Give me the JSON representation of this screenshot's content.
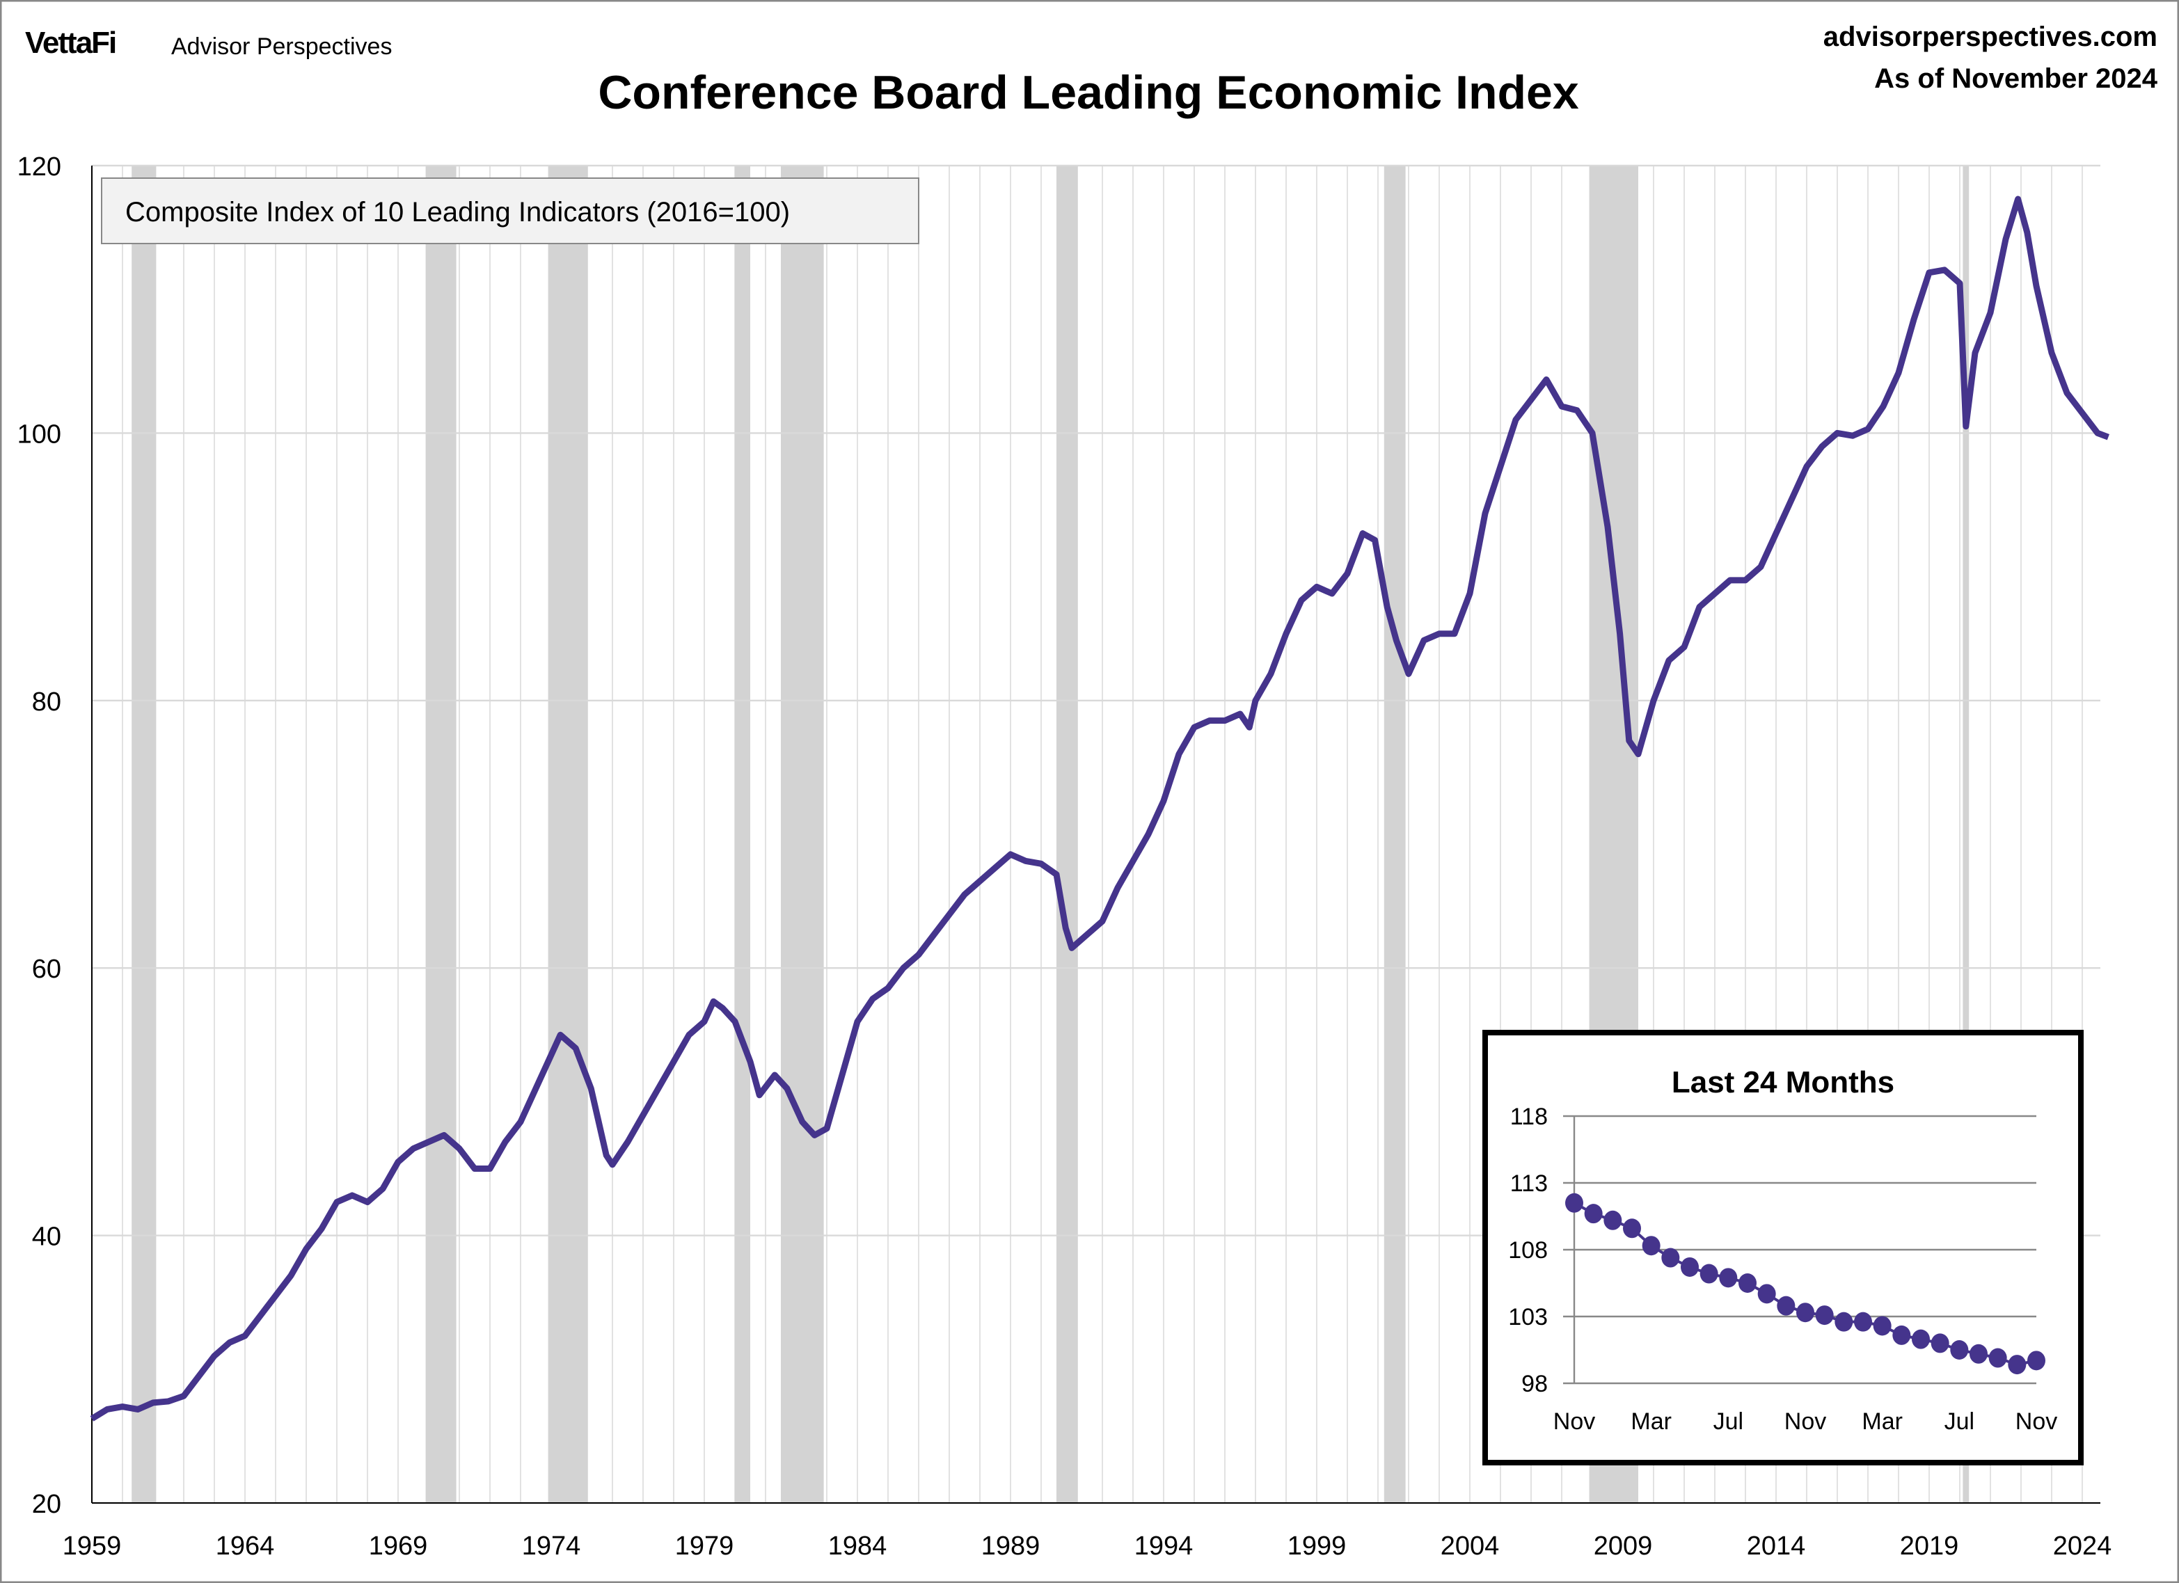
{
  "header": {
    "logo": "VettaFi",
    "brand": "Advisor Perspectives",
    "site": "advisorperspectives.com",
    "as_of": "As of November 2024"
  },
  "colors": {
    "line": "#45348c",
    "recession": "#d3d3d3",
    "grid": "#e2e2e2"
  },
  "chart_data": [
    {
      "type": "line",
      "title": "Conference Board Leading Economic Index",
      "legend_box": "Composite Index of 10 Leading Indicators (2016=100)",
      "ylim": [
        20,
        120
      ],
      "yticks": [
        "20",
        "40",
        "60",
        "80",
        "100",
        "120"
      ],
      "xlim": [
        1959,
        2025
      ],
      "xticks": [
        "1959",
        "1964",
        "1969",
        "1974",
        "1979",
        "1984",
        "1989",
        "1994",
        "1999",
        "2004",
        "2009",
        "2014",
        "2019",
        "2024"
      ],
      "recessions": [
        [
          1960.3,
          1961.1
        ],
        [
          1969.9,
          1970.9
        ],
        [
          1973.9,
          1975.2
        ],
        [
          1980.0,
          1980.5
        ],
        [
          1981.5,
          1982.9
        ],
        [
          1990.5,
          1991.2
        ],
        [
          2001.2,
          2001.9
        ],
        [
          2007.9,
          2009.5
        ],
        [
          2020.1,
          2020.3
        ]
      ],
      "series": [
        {
          "name": "LEI",
          "points": [
            [
              1959.0,
              26.3
            ],
            [
              1959.5,
              27
            ],
            [
              1960,
              27.2
            ],
            [
              1960.5,
              27
            ],
            [
              1961,
              27.5
            ],
            [
              1961.5,
              27.6
            ],
            [
              1962,
              28
            ],
            [
              1962.5,
              29.5
            ],
            [
              1963,
              31
            ],
            [
              1963.5,
              32
            ],
            [
              1964,
              32.5
            ],
            [
              1964.5,
              34
            ],
            [
              1965,
              35.5
            ],
            [
              1965.5,
              37
            ],
            [
              1966,
              39
            ],
            [
              1966.5,
              40.5
            ],
            [
              1967,
              42.5
            ],
            [
              1967.5,
              43
            ],
            [
              1968,
              42.5
            ],
            [
              1968.5,
              43.5
            ],
            [
              1969,
              45.5
            ],
            [
              1969.5,
              46.5
            ],
            [
              1970,
              47
            ],
            [
              1970.5,
              47.5
            ],
            [
              1971,
              46.5
            ],
            [
              1971.5,
              45
            ],
            [
              1972,
              45
            ],
            [
              1972.5,
              47
            ],
            [
              1973,
              48.5
            ],
            [
              1973.5,
              51
            ],
            [
              1974,
              53.5
            ],
            [
              1974.3,
              55
            ],
            [
              1974.8,
              54
            ],
            [
              1975.3,
              51
            ],
            [
              1975.8,
              46
            ],
            [
              1976,
              45.3
            ],
            [
              1976.5,
              47
            ],
            [
              1977,
              49
            ],
            [
              1977.5,
              51
            ],
            [
              1978,
              53
            ],
            [
              1978.5,
              55
            ],
            [
              1979,
              56
            ],
            [
              1979.3,
              57.5
            ],
            [
              1979.6,
              57
            ],
            [
              1980,
              56
            ],
            [
              1980.5,
              53
            ],
            [
              1980.8,
              50.5
            ],
            [
              1981.3,
              52
            ],
            [
              1981.7,
              51
            ],
            [
              1982.2,
              48.5
            ],
            [
              1982.6,
              47.5
            ],
            [
              1983,
              48
            ],
            [
              1983.5,
              52
            ],
            [
              1984,
              56
            ],
            [
              1984.5,
              57.7
            ],
            [
              1985,
              58.5
            ],
            [
              1985.5,
              60
            ],
            [
              1986,
              61
            ],
            [
              1986.5,
              62.5
            ],
            [
              1987,
              64
            ],
            [
              1987.5,
              65.5
            ],
            [
              1988,
              66.5
            ],
            [
              1988.5,
              67.5
            ],
            [
              1989,
              68.5
            ],
            [
              1989.5,
              68
            ],
            [
              1990,
              67.8
            ],
            [
              1990.5,
              67
            ],
            [
              1990.8,
              63
            ],
            [
              1991,
              61.5
            ],
            [
              1991.5,
              62.5
            ],
            [
              1992,
              63.5
            ],
            [
              1992.5,
              66
            ],
            [
              1993,
              68
            ],
            [
              1993.5,
              70
            ],
            [
              1994,
              72.5
            ],
            [
              1994.5,
              76
            ],
            [
              1995,
              78
            ],
            [
              1995.5,
              78.5
            ],
            [
              1996,
              78.5
            ],
            [
              1996.5,
              79
            ],
            [
              1996.8,
              78
            ],
            [
              1997,
              80
            ],
            [
              1997.5,
              82
            ],
            [
              1998,
              85
            ],
            [
              1998.5,
              87.5
            ],
            [
              1999,
              88.5
            ],
            [
              1999.5,
              88
            ],
            [
              2000,
              89.5
            ],
            [
              2000.5,
              92.5
            ],
            [
              2000.9,
              92
            ],
            [
              2001.3,
              87
            ],
            [
              2001.6,
              84.5
            ],
            [
              2002,
              82
            ],
            [
              2002.5,
              84.5
            ],
            [
              2003,
              85
            ],
            [
              2003.5,
              85
            ],
            [
              2004,
              88
            ],
            [
              2004.5,
              94
            ],
            [
              2005,
              97.5
            ],
            [
              2005.5,
              101
            ],
            [
              2006,
              102.5
            ],
            [
              2006.5,
              104
            ],
            [
              2007,
              102
            ],
            [
              2007.5,
              101.7
            ],
            [
              2008,
              100
            ],
            [
              2008.5,
              93
            ],
            [
              2008.9,
              85
            ],
            [
              2009.2,
              77
            ],
            [
              2009.5,
              76
            ],
            [
              2010,
              80
            ],
            [
              2010.5,
              83
            ],
            [
              2011,
              84
            ],
            [
              2011.5,
              87
            ],
            [
              2012,
              88
            ],
            [
              2012.5,
              89
            ],
            [
              2013,
              89
            ],
            [
              2013.5,
              90
            ],
            [
              2014,
              92.5
            ],
            [
              2014.5,
              95
            ],
            [
              2015,
              97.5
            ],
            [
              2015.5,
              99
            ],
            [
              2016,
              100
            ],
            [
              2016.5,
              99.8
            ],
            [
              2017,
              100.3
            ],
            [
              2017.5,
              102
            ],
            [
              2018,
              104.5
            ],
            [
              2018.5,
              108.5
            ],
            [
              2019,
              112
            ],
            [
              2019.5,
              112.2
            ],
            [
              2020,
              111.2
            ],
            [
              2020.2,
              100.5
            ],
            [
              2020.5,
              106
            ],
            [
              2021,
              109
            ],
            [
              2021.5,
              114.5
            ],
            [
              2021.9,
              117.5
            ],
            [
              2022.2,
              115
            ],
            [
              2022.5,
              111
            ],
            [
              2023,
              106
            ],
            [
              2023.5,
              103
            ],
            [
              2024,
              101.5
            ],
            [
              2024.5,
              100
            ],
            [
              2024.85,
              99.7
            ]
          ]
        }
      ]
    },
    {
      "type": "scatter",
      "title": "Last 24 Months",
      "ylim": [
        98,
        118
      ],
      "yticks": [
        "98",
        "103",
        "108",
        "113",
        "118"
      ],
      "xticks": [
        "Nov",
        "Mar",
        "Jul",
        "Nov",
        "Mar",
        "Jul",
        "Nov"
      ],
      "values": [
        111.5,
        110.7,
        110.2,
        109.6,
        108.3,
        107.4,
        106.7,
        106.2,
        105.9,
        105.5,
        104.7,
        103.8,
        103.3,
        103.1,
        102.6,
        102.6,
        102.3,
        101.6,
        101.3,
        101.0,
        100.5,
        100.2,
        99.9,
        99.4,
        99.7
      ]
    }
  ]
}
